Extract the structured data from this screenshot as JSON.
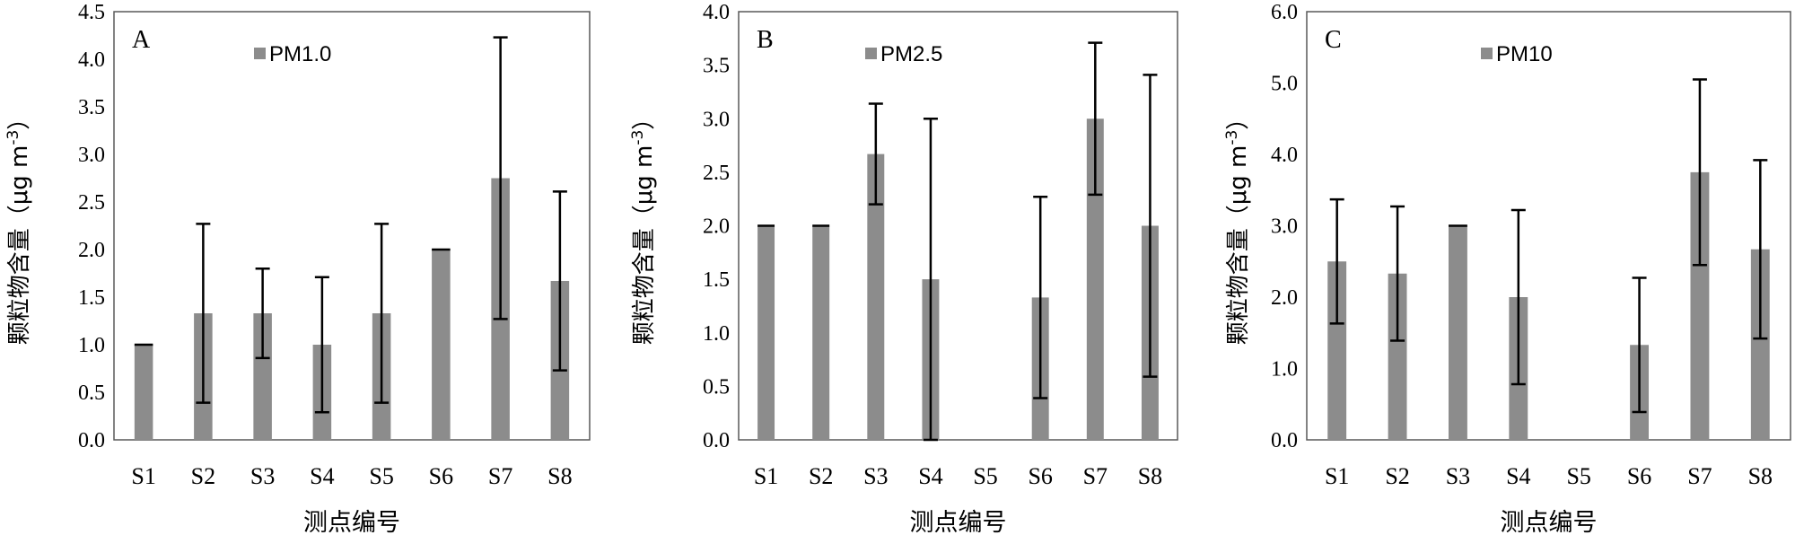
{
  "chart_data": [
    {
      "type": "bar",
      "panel_label": "A",
      "legend": "PM1.0",
      "categories": [
        "S1",
        "S2",
        "S3",
        "S4",
        "S5",
        "S6",
        "S7",
        "S8"
      ],
      "values": [
        1.0,
        1.33,
        1.33,
        1.0,
        1.33,
        2.0,
        2.75,
        1.67
      ],
      "error_low": [
        0.0,
        0.94,
        0.47,
        0.71,
        0.94,
        0.0,
        1.48,
        0.94
      ],
      "error_high": [
        0.0,
        0.94,
        0.47,
        0.71,
        0.94,
        0.0,
        1.48,
        0.94
      ],
      "ylim": [
        0,
        4.5
      ],
      "yticks": [
        "0.0",
        "0.5",
        "1.0",
        "1.5",
        "2.0",
        "2.5",
        "3.0",
        "3.5",
        "4.0",
        "4.5"
      ],
      "ytick_values": [
        0,
        0.5,
        1,
        1.5,
        2,
        2.5,
        3,
        3.5,
        4,
        4.5
      ],
      "xlabel": "测点编号",
      "ylabel_main": "颗粒物含量（μg m",
      "ylabel_sup": "-3",
      "ylabel_close": "）"
    },
    {
      "type": "bar",
      "panel_label": "B",
      "legend": "PM2.5",
      "categories": [
        "S1",
        "S2",
        "S3",
        "S4",
        "S5",
        "S6",
        "S7",
        "S8"
      ],
      "values": [
        2.0,
        2.0,
        2.67,
        1.5,
        0,
        1.33,
        3.0,
        2.0
      ],
      "error_low": [
        0.0,
        0.0,
        0.47,
        1.5,
        0,
        0.94,
        0.71,
        1.41
      ],
      "error_high": [
        0.0,
        0.0,
        0.47,
        1.5,
        0,
        0.94,
        0.71,
        1.41
      ],
      "ylim": [
        0,
        4.0
      ],
      "yticks": [
        "0.0",
        "0.5",
        "1.0",
        "1.5",
        "2.0",
        "2.5",
        "3.0",
        "3.5",
        "4.0"
      ],
      "ytick_values": [
        0,
        0.5,
        1,
        1.5,
        2,
        2.5,
        3,
        3.5,
        4
      ],
      "xlabel": "测点编号",
      "ylabel_main": "颗粒物含量（μg m",
      "ylabel_sup": "-3",
      "ylabel_close": "）"
    },
    {
      "type": "bar",
      "panel_label": "C",
      "legend": "PM10",
      "categories": [
        "S1",
        "S2",
        "S3",
        "S4",
        "S5",
        "S6",
        "S7",
        "S8"
      ],
      "values": [
        2.5,
        2.33,
        3.0,
        2.0,
        0,
        1.33,
        3.75,
        2.67
      ],
      "error_low": [
        0.87,
        0.94,
        0.0,
        1.22,
        0,
        0.94,
        1.3,
        1.25
      ],
      "error_high": [
        0.87,
        0.94,
        0.0,
        1.22,
        0,
        0.94,
        1.3,
        1.25
      ],
      "ylim": [
        0,
        6.0
      ],
      "yticks": [
        "0.0",
        "1.0",
        "2.0",
        "3.0",
        "4.0",
        "5.0",
        "6.0"
      ],
      "ytick_values": [
        0,
        1,
        2,
        3,
        4,
        5,
        6
      ],
      "xlabel": "测点编号",
      "ylabel_main": "颗粒物含量（μg m",
      "ylabel_sup": "-3",
      "ylabel_close": "）"
    }
  ],
  "colors": {
    "bar": "#8c8c8c",
    "frame": "#595959",
    "error": "#000000"
  }
}
